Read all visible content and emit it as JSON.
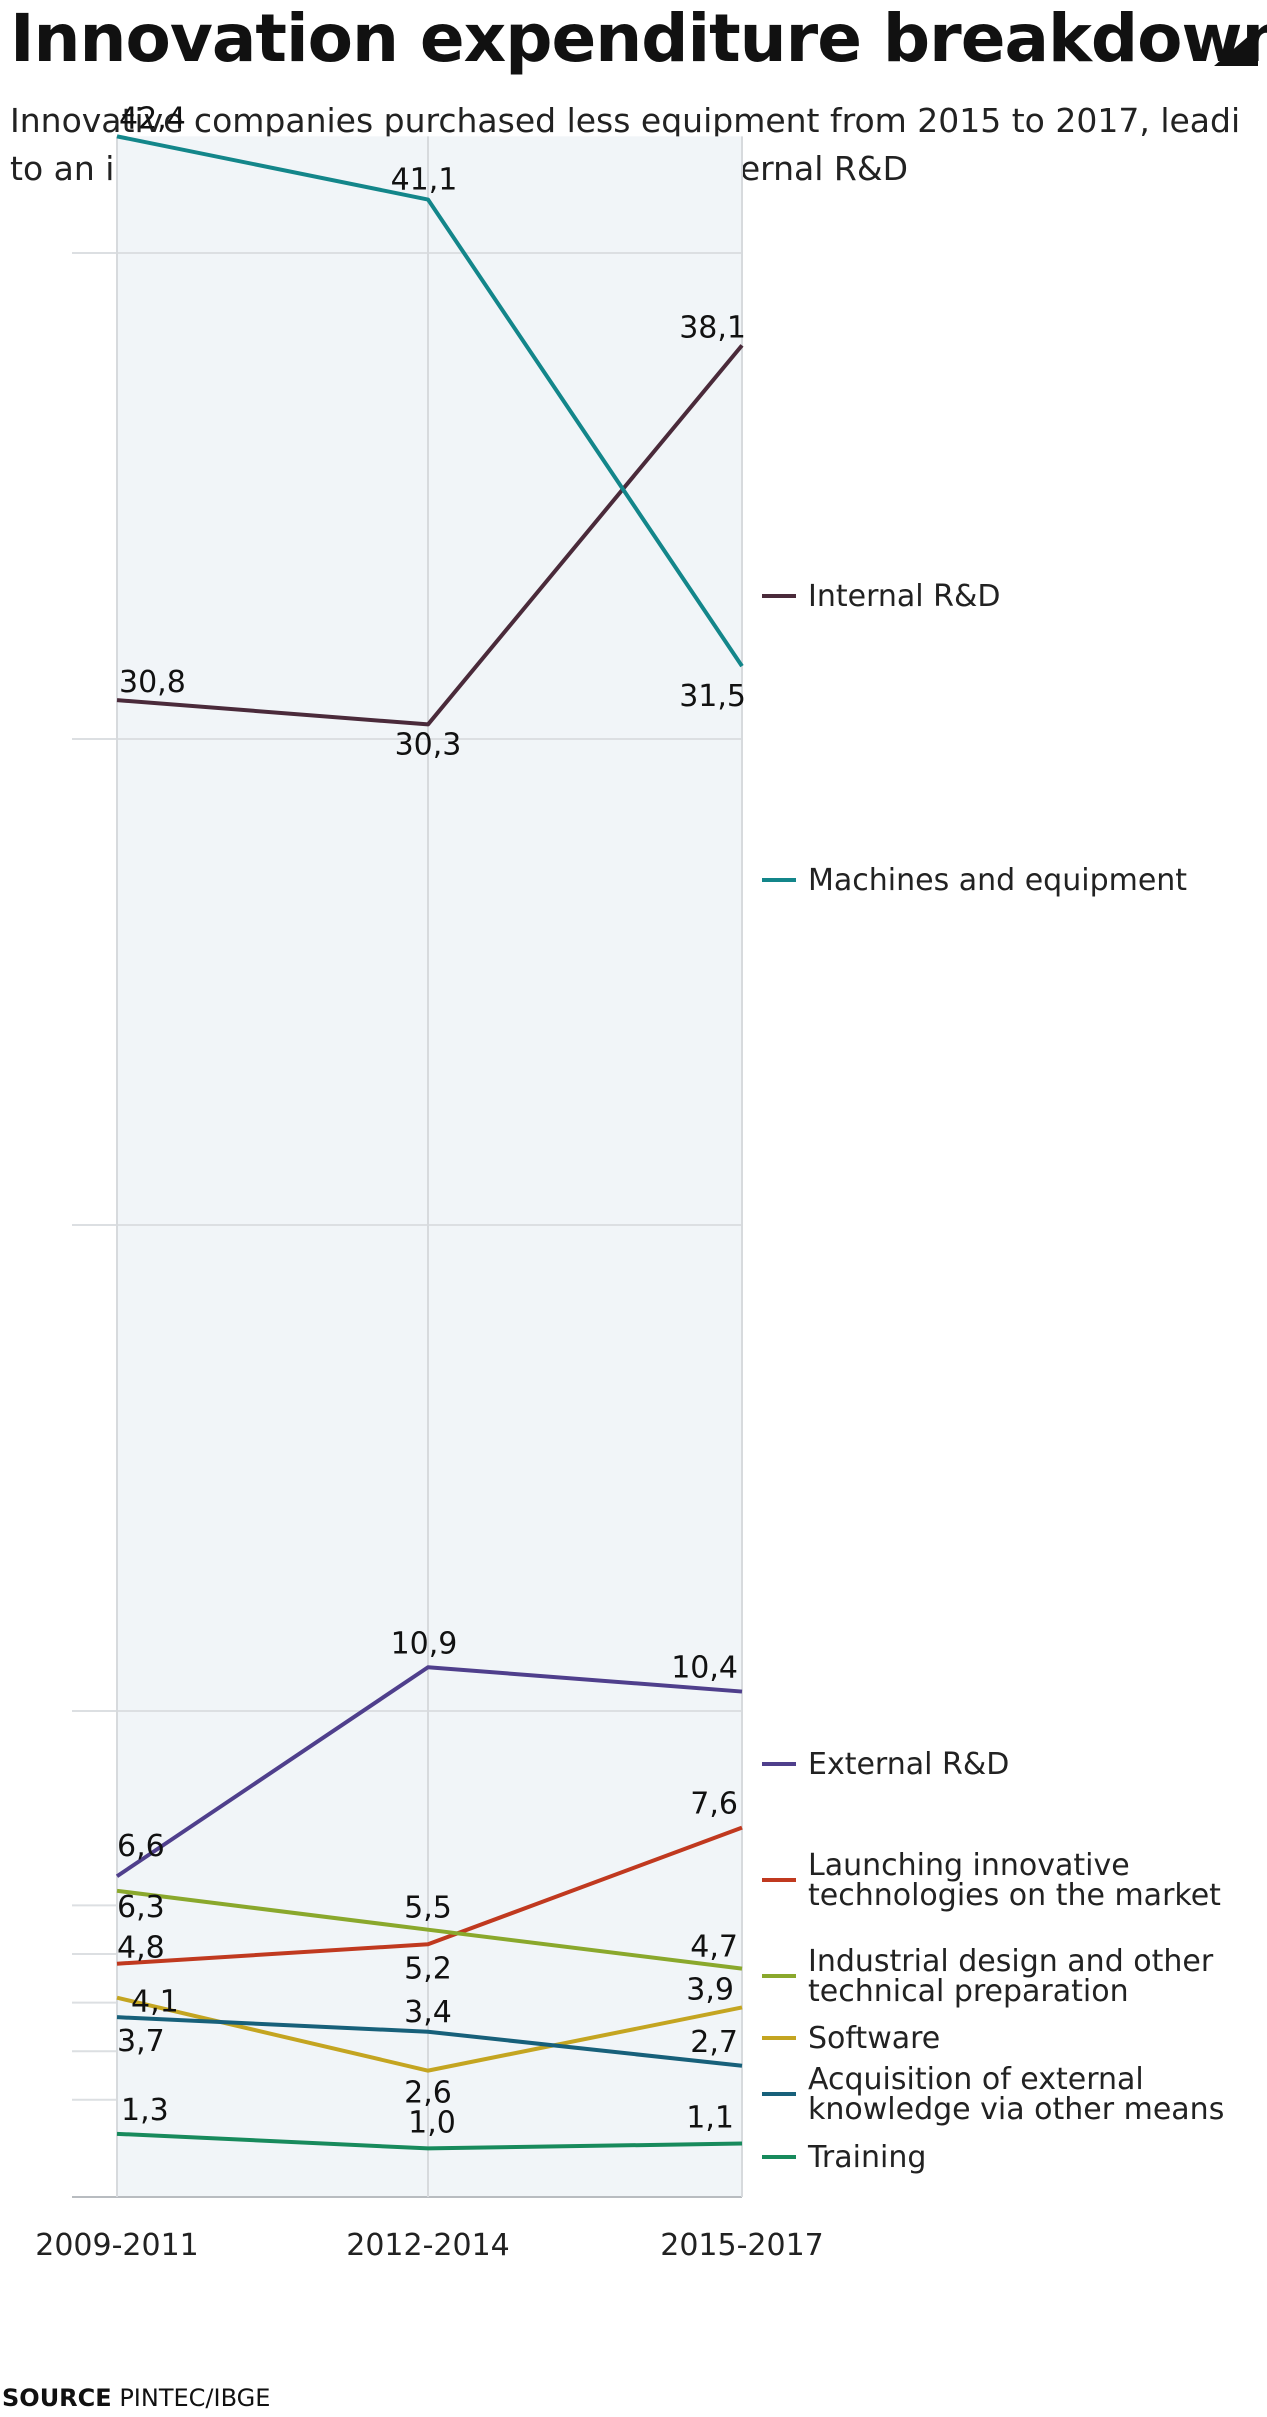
{
  "title": "Innovation expenditure breakdown",
  "subtitle_line1": "Innovative companies purchased less equipment from 2015 to 2017, leadi",
  "subtitle_line2": "to an increase in the proportion spent on internal R&D",
  "source_label": "SOURCE",
  "source_text": "PINTEC/IBGE",
  "chart_data": {
    "type": "line",
    "title": "Innovation expenditure breakdown",
    "x": [
      "2009-2011",
      "2012-2014",
      "2015-2017"
    ],
    "ylim": [
      0,
      42.4
    ],
    "grid": true,
    "legend_placement": "right (inline labels at line ends)",
    "series": [
      {
        "name": "Internal R&D",
        "color": "#4a2a3a",
        "values": [
          30.8,
          30.3,
          38.1
        ],
        "labels": [
          "30,8",
          "30,3",
          "38,1"
        ],
        "legend": [
          "Internal R&D"
        ]
      },
      {
        "name": "Machines and equipment",
        "color": "#13868a",
        "values": [
          42.4,
          41.1,
          31.5
        ],
        "labels": [
          "42,4",
          "41,1",
          "31,5"
        ],
        "legend": [
          "Machines and equipment"
        ]
      },
      {
        "name": "External R&D",
        "color": "#4f3f8c",
        "values": [
          6.6,
          10.9,
          10.4
        ],
        "labels": [
          "6,6",
          "10,9",
          "10,4"
        ],
        "legend": [
          "External R&D"
        ]
      },
      {
        "name": "Launching innovative technologies on the market",
        "color": "#c0391f",
        "values": [
          4.8,
          5.2,
          7.6
        ],
        "labels": [
          "4,8",
          "5,2",
          "7,6"
        ],
        "legend": [
          "Launching innovative",
          "technologies on the market"
        ]
      },
      {
        "name": "Industrial design and other technical preparation",
        "color": "#8aa82c",
        "values": [
          6.3,
          5.5,
          4.7
        ],
        "labels": [
          "6,3",
          "5,5",
          "4,7"
        ],
        "legend": [
          "Industrial design and other",
          "technical preparation"
        ]
      },
      {
        "name": "Software",
        "color": "#c4a521",
        "values": [
          4.1,
          2.6,
          3.9
        ],
        "labels": [
          "4,1",
          "2,6",
          "3,9"
        ],
        "legend": [
          "Software"
        ]
      },
      {
        "name": "Acquisition of external knowledge via other means",
        "color": "#17607a",
        "values": [
          3.7,
          3.4,
          2.7
        ],
        "labels": [
          "3,7",
          "3,4",
          "2,7"
        ],
        "legend": [
          "Acquisition of external",
          "knowledge via other means"
        ]
      },
      {
        "name": "Training",
        "color": "#178a5c",
        "values": [
          1.3,
          1.0,
          1.1
        ],
        "labels": [
          "1,3",
          "1,0",
          "1,1"
        ],
        "legend": [
          "Training"
        ]
      }
    ]
  }
}
